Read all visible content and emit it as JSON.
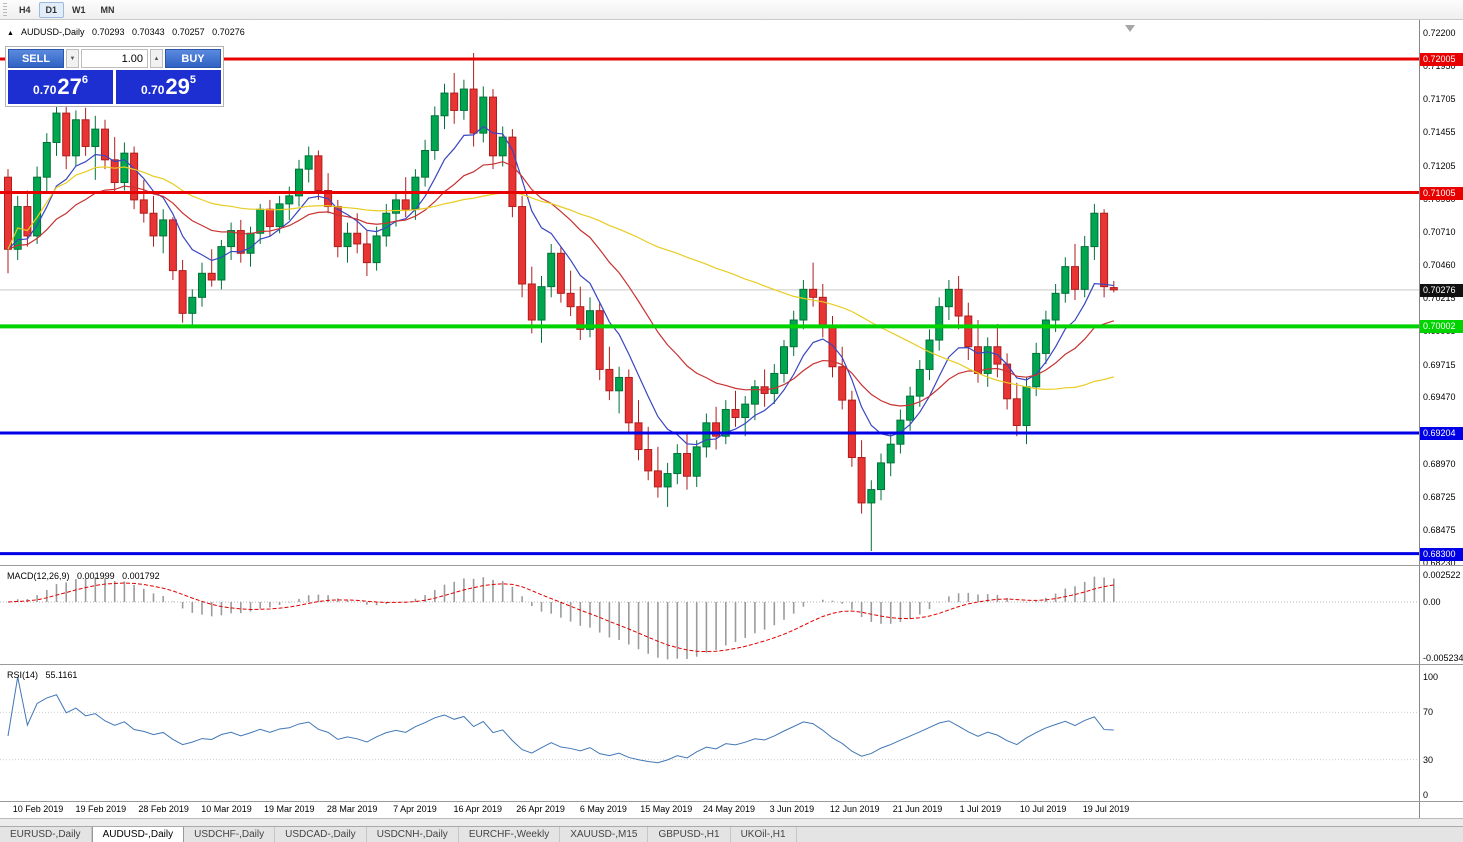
{
  "header": {
    "symbol": "AUDUSD-,Daily",
    "open": "0.70293",
    "high": "0.70343",
    "low": "0.70257",
    "close": "0.70276"
  },
  "icons": {
    "symbol_marker": "▲",
    "spin_down": "▼",
    "spin_up": "▲"
  },
  "toolbar": {
    "timeframes": [
      "H4",
      "D1",
      "W1",
      "MN"
    ],
    "active_timeframe": "D1"
  },
  "trade_panel": {
    "sell_label": "SELL",
    "buy_label": "BUY",
    "volume": "1.00",
    "sell_price": {
      "prefix": "0.70",
      "big": "27",
      "sup": "6"
    },
    "buy_price": {
      "prefix": "0.70",
      "big": "29",
      "sup": "5"
    }
  },
  "price_axis": {
    "ticks": [
      "0.72200",
      "0.71950",
      "0.71705",
      "0.71455",
      "0.71205",
      "0.70960",
      "0.70710",
      "0.70460",
      "0.70215",
      "0.69965",
      "0.69715",
      "0.69470",
      "0.69220",
      "0.68970",
      "0.68725",
      "0.68475",
      "0.68230"
    ]
  },
  "tabs": {
    "items": [
      "EURUSD-,Daily",
      "AUDUSD-,Daily",
      "USDCHF-,Daily",
      "USDCAD-,Daily",
      "USDCNH-,Daily",
      "EURCHF-,Weekly",
      "XAUUSD-,M15",
      "GBPUSD-,H1",
      "UKOil-,H1"
    ],
    "active": "AUDUSD-,Daily"
  },
  "chart_data": {
    "type": "candlestick",
    "symbol": "AUDUSD-,Daily",
    "timeframe": "Daily",
    "colors": {
      "up": "#00a550",
      "up_border": "#007238",
      "down": "#e93434",
      "down_border": "#b01d1d",
      "macd_histogram": "#9b9b9b",
      "macd_signal": "#e00000",
      "rsi_line": "#4277b6",
      "current_price_line": "#c9c9c9"
    },
    "price_range": {
      "axis_top": 0.722,
      "axis_bottom": 0.6823
    },
    "current_price": {
      "value": 0.70276,
      "label": "0.70276"
    },
    "levels": [
      {
        "value": 0.72005,
        "label": "0.72005",
        "color": "#e80000",
        "width": 3
      },
      {
        "value": 0.71005,
        "label": "0.71005",
        "color": "#e80000",
        "width": 3
      },
      {
        "value": 0.70002,
        "label": "0.70002",
        "color": "#00d400",
        "width": 4
      },
      {
        "value": 0.69204,
        "label": "0.69204",
        "color": "#0000e6",
        "width": 3
      },
      {
        "value": 0.683,
        "label": "0.68300",
        "color": "#0000e6",
        "width": 3
      }
    ],
    "moving_averages": [
      {
        "name": "fast",
        "method": "ema",
        "period": 8,
        "color": "#3946c0"
      },
      {
        "name": "medium",
        "method": "ema",
        "period": 21,
        "color": "#c83232"
      },
      {
        "name": "slow",
        "method": "sma",
        "period": 50,
        "color": "#e8cc22"
      }
    ],
    "macd": {
      "label": "MACD(12,26,9)",
      "value": "0.001999",
      "signal_value": "0.001792",
      "fast": 12,
      "slow": 26,
      "signal": 9,
      "axis": {
        "max": 0.002522,
        "min": -0.005234
      },
      "axis_labels": [
        "0.002522",
        "0.00",
        "-0.005234"
      ]
    },
    "rsi": {
      "label": "RSI(14)",
      "period": 14,
      "value": "55.1161",
      "axis": [
        100,
        70,
        30,
        0
      ]
    },
    "dates": [
      "10 Feb 2019",
      "19 Feb 2019",
      "28 Feb 2019",
      "10 Mar 2019",
      "19 Mar 2019",
      "28 Mar 2019",
      "7 Apr 2019",
      "16 Apr 2019",
      "26 Apr 2019",
      "6 May 2019",
      "15 May 2019",
      "24 May 2019",
      "3 Jun 2019",
      "12 Jun 2019",
      "21 Jun 2019",
      "1 Jul 2019",
      "10 Jul 2019",
      "19 Jul 2019"
    ],
    "ohlc": [
      [
        0.7112,
        0.7118,
        0.704,
        0.7058
      ],
      [
        0.7058,
        0.7098,
        0.705,
        0.709
      ],
      [
        0.709,
        0.7102,
        0.706,
        0.7068
      ],
      [
        0.7068,
        0.712,
        0.7062,
        0.7112
      ],
      [
        0.7112,
        0.7145,
        0.71,
        0.7138
      ],
      [
        0.7138,
        0.717,
        0.7128,
        0.716
      ],
      [
        0.716,
        0.7168,
        0.7118,
        0.7128
      ],
      [
        0.7128,
        0.7162,
        0.712,
        0.7155
      ],
      [
        0.7155,
        0.7164,
        0.7128,
        0.7135
      ],
      [
        0.7135,
        0.7158,
        0.711,
        0.7148
      ],
      [
        0.7148,
        0.7155,
        0.7118,
        0.7125
      ],
      [
        0.7125,
        0.7142,
        0.71,
        0.7108
      ],
      [
        0.7108,
        0.7138,
        0.7102,
        0.713
      ],
      [
        0.713,
        0.7135,
        0.7088,
        0.7095
      ],
      [
        0.7095,
        0.711,
        0.7078,
        0.7085
      ],
      [
        0.7085,
        0.7098,
        0.706,
        0.7068
      ],
      [
        0.7068,
        0.7088,
        0.7055,
        0.708
      ],
      [
        0.708,
        0.7082,
        0.7035,
        0.7042
      ],
      [
        0.7042,
        0.705,
        0.7003,
        0.701
      ],
      [
        0.701,
        0.7028,
        0.7,
        0.7022
      ],
      [
        0.7022,
        0.7048,
        0.7015,
        0.704
      ],
      [
        0.704,
        0.7058,
        0.703,
        0.7035
      ],
      [
        0.7035,
        0.7065,
        0.7028,
        0.706
      ],
      [
        0.706,
        0.7078,
        0.705,
        0.7072
      ],
      [
        0.7072,
        0.708,
        0.7048,
        0.7055
      ],
      [
        0.7055,
        0.7075,
        0.7045,
        0.707
      ],
      [
        0.707,
        0.7092,
        0.7062,
        0.7088
      ],
      [
        0.7088,
        0.7095,
        0.7068,
        0.7075
      ],
      [
        0.7075,
        0.7098,
        0.707,
        0.7092
      ],
      [
        0.7092,
        0.7105,
        0.708,
        0.7098
      ],
      [
        0.7098,
        0.7125,
        0.709,
        0.7118
      ],
      [
        0.7118,
        0.7135,
        0.7108,
        0.7128
      ],
      [
        0.7128,
        0.7132,
        0.7095,
        0.7102
      ],
      [
        0.7102,
        0.7115,
        0.7085,
        0.709
      ],
      [
        0.709,
        0.7095,
        0.7052,
        0.706
      ],
      [
        0.706,
        0.7078,
        0.7048,
        0.707
      ],
      [
        0.707,
        0.7085,
        0.7055,
        0.7062
      ],
      [
        0.7062,
        0.7072,
        0.7038,
        0.7048
      ],
      [
        0.7048,
        0.7075,
        0.7042,
        0.7068
      ],
      [
        0.7068,
        0.7092,
        0.706,
        0.7085
      ],
      [
        0.7085,
        0.71,
        0.7075,
        0.7095
      ],
      [
        0.7095,
        0.7112,
        0.7082,
        0.7088
      ],
      [
        0.7088,
        0.7118,
        0.708,
        0.7112
      ],
      [
        0.7112,
        0.714,
        0.7105,
        0.7132
      ],
      [
        0.7132,
        0.7165,
        0.7125,
        0.7158
      ],
      [
        0.7158,
        0.7182,
        0.7148,
        0.7175
      ],
      [
        0.7175,
        0.719,
        0.7152,
        0.7162
      ],
      [
        0.7162,
        0.7185,
        0.7155,
        0.7178
      ],
      [
        0.7178,
        0.7205,
        0.7135,
        0.7145
      ],
      [
        0.7145,
        0.718,
        0.7138,
        0.7172
      ],
      [
        0.7172,
        0.7178,
        0.7118,
        0.7128
      ],
      [
        0.7128,
        0.715,
        0.712,
        0.7142
      ],
      [
        0.7142,
        0.7148,
        0.7082,
        0.709
      ],
      [
        0.709,
        0.7098,
        0.7022,
        0.7032
      ],
      [
        0.7032,
        0.7045,
        0.6995,
        0.7005
      ],
      [
        0.7005,
        0.7038,
        0.6988,
        0.703
      ],
      [
        0.703,
        0.7062,
        0.7022,
        0.7055
      ],
      [
        0.7055,
        0.706,
        0.7018,
        0.7025
      ],
      [
        0.7025,
        0.7042,
        0.7008,
        0.7015
      ],
      [
        0.7015,
        0.703,
        0.699,
        0.6998
      ],
      [
        0.6998,
        0.7022,
        0.6992,
        0.7012
      ],
      [
        0.7012,
        0.7018,
        0.696,
        0.6968
      ],
      [
        0.6968,
        0.6985,
        0.6945,
        0.6952
      ],
      [
        0.6952,
        0.697,
        0.6935,
        0.6962
      ],
      [
        0.6962,
        0.6968,
        0.692,
        0.6928
      ],
      [
        0.6928,
        0.6945,
        0.69,
        0.6908
      ],
      [
        0.6908,
        0.6925,
        0.6885,
        0.6892
      ],
      [
        0.6892,
        0.691,
        0.6872,
        0.688
      ],
      [
        0.688,
        0.6898,
        0.6865,
        0.689
      ],
      [
        0.689,
        0.6912,
        0.6882,
        0.6905
      ],
      [
        0.6905,
        0.692,
        0.6878,
        0.6888
      ],
      [
        0.6888,
        0.6915,
        0.688,
        0.691
      ],
      [
        0.691,
        0.6935,
        0.6902,
        0.6928
      ],
      [
        0.6928,
        0.694,
        0.6908,
        0.6918
      ],
      [
        0.6918,
        0.6945,
        0.6912,
        0.6938
      ],
      [
        0.6938,
        0.6952,
        0.6925,
        0.6932
      ],
      [
        0.6932,
        0.6948,
        0.6918,
        0.6942
      ],
      [
        0.6942,
        0.696,
        0.693,
        0.6955
      ],
      [
        0.6955,
        0.6968,
        0.694,
        0.695
      ],
      [
        0.695,
        0.6972,
        0.6942,
        0.6965
      ],
      [
        0.6965,
        0.699,
        0.6958,
        0.6985
      ],
      [
        0.6985,
        0.7012,
        0.6978,
        0.7005
      ],
      [
        0.7005,
        0.7035,
        0.6998,
        0.7028
      ],
      [
        0.7028,
        0.7048,
        0.7015,
        0.7022
      ],
      [
        0.7022,
        0.7032,
        0.6992,
        0.7
      ],
      [
        0.7,
        0.7008,
        0.6962,
        0.697
      ],
      [
        0.697,
        0.6985,
        0.6938,
        0.6945
      ],
      [
        0.6945,
        0.6952,
        0.6895,
        0.6902
      ],
      [
        0.6902,
        0.6915,
        0.686,
        0.6868
      ],
      [
        0.6868,
        0.6885,
        0.6832,
        0.6878
      ],
      [
        0.6878,
        0.6905,
        0.687,
        0.6898
      ],
      [
        0.6898,
        0.692,
        0.6888,
        0.6912
      ],
      [
        0.6912,
        0.6938,
        0.6905,
        0.693
      ],
      [
        0.693,
        0.6955,
        0.6922,
        0.6948
      ],
      [
        0.6948,
        0.6975,
        0.694,
        0.6968
      ],
      [
        0.6968,
        0.6998,
        0.696,
        0.699
      ],
      [
        0.699,
        0.7022,
        0.6982,
        0.7015
      ],
      [
        0.7015,
        0.7035,
        0.7005,
        0.7028
      ],
      [
        0.7028,
        0.7038,
        0.6998,
        0.7008
      ],
      [
        0.7008,
        0.7018,
        0.6975,
        0.6985
      ],
      [
        0.6985,
        0.7005,
        0.6958,
        0.6965
      ],
      [
        0.6965,
        0.6992,
        0.6955,
        0.6985
      ],
      [
        0.6985,
        0.7002,
        0.6962,
        0.6972
      ],
      [
        0.6972,
        0.698,
        0.6938,
        0.6946
      ],
      [
        0.6946,
        0.6958,
        0.6918,
        0.6926
      ],
      [
        0.6926,
        0.6962,
        0.6912,
        0.6955
      ],
      [
        0.6955,
        0.6988,
        0.6948,
        0.698
      ],
      [
        0.698,
        0.7012,
        0.6972,
        0.7005
      ],
      [
        0.7005,
        0.7032,
        0.6996,
        0.7025
      ],
      [
        0.7025,
        0.7052,
        0.7018,
        0.7045
      ],
      [
        0.7045,
        0.7062,
        0.702,
        0.7028
      ],
      [
        0.7028,
        0.7068,
        0.7022,
        0.706
      ],
      [
        0.706,
        0.7092,
        0.705,
        0.7085
      ],
      [
        0.7085,
        0.7088,
        0.7022,
        0.703
      ],
      [
        0.70293,
        0.70343,
        0.70257,
        0.70276
      ]
    ]
  }
}
